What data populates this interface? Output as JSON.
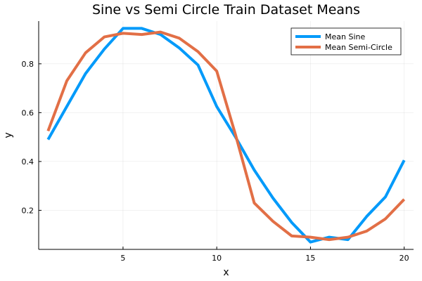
{
  "chart_data": {
    "type": "line",
    "title": "Sine vs Semi Circle Train Dataset Means",
    "xlabel": "x",
    "ylabel": "y",
    "xlim": [
      0.5,
      20.5
    ],
    "ylim": [
      0.04,
      0.975
    ],
    "xticks": [
      5,
      10,
      15,
      20
    ],
    "yticks": [
      0.2,
      0.4,
      0.6,
      0.8
    ],
    "xtick_labels": [
      "5",
      "10",
      "15",
      "20"
    ],
    "ytick_labels": [
      "0.2",
      "0.4",
      "0.6",
      "0.8"
    ],
    "grid": true,
    "legend_position": "top-right",
    "x": [
      1,
      2,
      3,
      4,
      5,
      6,
      7,
      8,
      9,
      10,
      11,
      12,
      13,
      14,
      15,
      16,
      17,
      18,
      19,
      20
    ],
    "series": [
      {
        "name": "Mean Sine",
        "color": "#009AFA",
        "values": [
          0.49,
          0.625,
          0.76,
          0.86,
          0.945,
          0.945,
          0.92,
          0.865,
          0.795,
          0.625,
          0.5,
          0.365,
          0.25,
          0.15,
          0.07,
          0.09,
          0.08,
          0.175,
          0.255,
          0.405
        ]
      },
      {
        "name": "Mean Semi-Circle",
        "color": "#E26F46",
        "values": [
          0.525,
          0.73,
          0.845,
          0.91,
          0.925,
          0.92,
          0.93,
          0.905,
          0.85,
          0.77,
          0.51,
          0.23,
          0.155,
          0.095,
          0.09,
          0.08,
          0.09,
          0.115,
          0.165,
          0.245
        ]
      }
    ]
  }
}
